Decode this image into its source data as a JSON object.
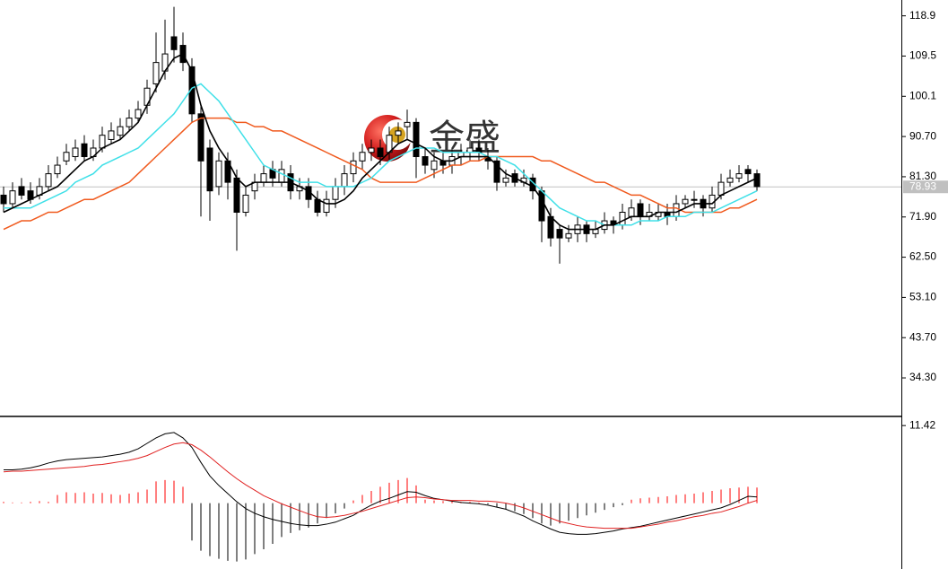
{
  "chart_data": [
    {
      "type": "candlestick",
      "watermark": "金盛",
      "up_color": "#ffffff",
      "down_color": "#000000",
      "open": [
        77,
        75,
        79,
        78,
        77,
        79,
        82,
        85,
        86,
        89,
        86,
        88,
        90,
        91,
        93,
        95,
        98,
        103,
        106,
        114,
        112,
        107,
        96,
        88,
        79,
        85,
        81,
        73,
        78,
        80,
        83,
        80,
        82,
        78,
        79,
        76,
        73,
        76,
        79,
        82,
        85,
        87,
        88,
        87,
        91,
        93,
        94,
        86,
        83,
        85,
        84,
        86,
        87,
        88,
        86,
        85,
        80,
        82,
        80,
        81,
        78,
        72,
        69,
        67,
        68,
        70,
        68,
        69,
        71,
        70,
        72,
        75,
        72,
        72,
        73,
        72,
        75,
        76,
        76,
        74,
        77,
        80,
        81,
        83,
        82
      ],
      "high": [
        79,
        80,
        81,
        80,
        81,
        84,
        86,
        89,
        90,
        91,
        90,
        93,
        94,
        95,
        97,
        99,
        104,
        115,
        118,
        121,
        115,
        109,
        98,
        90,
        87,
        87,
        83,
        79,
        82,
        84,
        85,
        85,
        84,
        81,
        81,
        78,
        78,
        81,
        84,
        87,
        89,
        90,
        90,
        93,
        94,
        97,
        95,
        88,
        87,
        87,
        88,
        89,
        90,
        90,
        88,
        86,
        83,
        83,
        83,
        82,
        79,
        74,
        70,
        70,
        72,
        71,
        71,
        73,
        72,
        75,
        76,
        76,
        75,
        75,
        75,
        77,
        77,
        78,
        77,
        79,
        82,
        83,
        84,
        84,
        83
      ],
      "low": [
        73,
        74,
        76,
        75,
        76,
        78,
        81,
        84,
        85,
        85,
        85,
        87,
        89,
        90,
        92,
        94,
        96,
        101,
        104,
        108,
        106,
        94,
        72,
        71,
        77,
        76,
        64,
        72,
        76,
        79,
        79,
        79,
        76,
        76,
        74,
        72,
        72,
        74,
        77,
        80,
        83,
        85,
        84,
        85,
        89,
        90,
        81,
        82,
        81,
        82,
        82,
        84,
        85,
        85,
        83,
        78,
        79,
        79,
        79,
        76,
        66,
        65,
        61,
        66,
        66,
        66,
        67,
        68,
        68,
        69,
        71,
        70,
        71,
        71,
        70,
        71,
        74,
        74,
        72,
        73,
        76,
        79,
        80,
        80,
        78
      ],
      "close": [
        75,
        78,
        77,
        76,
        79,
        82,
        84,
        87,
        88,
        86,
        88,
        91,
        92,
        93,
        95,
        97,
        102,
        108,
        110,
        111,
        108,
        96,
        85,
        78,
        85,
        80,
        73,
        77,
        80,
        82,
        81,
        83,
        78,
        79,
        76,
        73,
        76,
        79,
        82,
        85,
        87,
        88,
        86,
        91,
        92,
        94,
        86,
        84,
        85,
        84,
        86,
        87,
        88,
        87,
        85,
        80,
        81,
        80,
        81,
        78,
        71,
        67,
        67,
        68,
        70,
        68,
        69,
        71,
        70,
        73,
        74,
        72,
        73,
        73,
        72,
        75,
        76,
        76,
        74,
        77,
        80,
        81,
        82,
        82,
        79
      ],
      "overlays": [
        {
          "color": "#000000",
          "values": [
            73,
            74,
            75,
            76,
            77,
            78,
            79,
            81,
            83,
            85,
            86,
            88,
            89,
            90,
            92,
            94,
            98,
            102,
            106,
            109,
            110,
            106,
            98,
            92,
            88,
            85,
            81,
            79,
            80,
            80,
            80,
            80,
            80,
            79,
            78,
            76,
            75,
            75,
            76,
            78,
            81,
            83,
            85,
            87,
            89,
            90,
            89,
            88,
            86,
            85,
            85,
            86,
            86,
            86,
            86,
            84,
            82,
            81,
            80,
            79,
            76,
            72,
            70,
            69,
            69,
            69,
            69,
            70,
            70,
            71,
            72,
            72,
            72,
            73,
            73,
            73,
            74,
            75,
            75,
            75,
            77,
            78,
            79,
            80,
            81
          ]
        },
        {
          "color": "#40e0e8",
          "values": [
            74,
            74,
            74,
            74,
            75,
            76,
            77,
            78,
            80,
            81,
            82,
            84,
            85,
            86,
            87,
            88,
            90,
            92,
            94,
            96,
            99,
            102,
            103,
            101,
            99,
            96,
            93,
            90,
            87,
            84,
            83,
            82,
            81,
            80,
            80,
            80,
            79,
            79,
            79,
            79,
            80,
            81,
            83,
            85,
            86,
            87,
            88,
            88,
            88,
            87,
            87,
            87,
            87,
            87,
            86,
            86,
            85,
            84,
            82,
            80,
            78,
            76,
            74,
            73,
            72,
            71,
            71,
            70,
            70,
            70,
            70,
            71,
            71,
            71,
            72,
            72,
            72,
            73,
            73,
            73,
            74,
            75,
            76,
            77,
            78
          ]
        },
        {
          "color": "#f05a1e",
          "values": [
            69,
            70,
            71,
            71,
            72,
            73,
            73,
            74,
            75,
            76,
            76,
            77,
            78,
            79,
            80,
            82,
            84,
            86,
            88,
            90,
            92,
            94,
            95,
            95,
            95,
            95,
            94,
            94,
            93,
            93,
            92,
            92,
            91,
            90,
            89,
            88,
            87,
            86,
            85,
            84,
            83,
            81,
            80,
            80,
            80,
            80,
            80,
            81,
            82,
            83,
            84,
            84,
            85,
            85,
            86,
            86,
            86,
            86,
            86,
            86,
            85,
            85,
            84,
            83,
            82,
            81,
            80,
            80,
            79,
            78,
            77,
            77,
            76,
            75,
            74,
            74,
            73,
            73,
            73,
            73,
            73,
            74,
            74,
            75,
            76
          ]
        }
      ],
      "current_price": 78.93,
      "ylim": [
        25.5,
        122.6
      ],
      "yticks": [
        118.9,
        109.5,
        100.1,
        {
          "value": 90.7,
          "label": "90.70"
        },
        {
          "value": 81.3,
          "label": "81.30"
        },
        {
          "value": 71.9,
          "label": "71.90"
        },
        {
          "value": 62.5,
          "label": "62.50"
        },
        {
          "value": 53.1,
          "label": "53.10"
        },
        {
          "value": 43.7,
          "label": "43.70"
        },
        {
          "value": 34.3,
          "label": "34.30"
        }
      ]
    },
    {
      "type": "macd",
      "up_color": "#ff0000",
      "down_color": "#000000",
      "histogram": [
        0.2,
        0.1,
        0.1,
        0.2,
        0.3,
        0.2,
        1.2,
        1.6,
        1.5,
        1.6,
        1.4,
        1.5,
        1.3,
        1.2,
        1.4,
        1.6,
        2.0,
        3.2,
        3.4,
        3.3,
        2.4,
        -5.5,
        -7.0,
        -7.8,
        -8.2,
        -8.5,
        -8.6,
        -8.3,
        -7.5,
        -6.8,
        -6.0,
        -5.0,
        -4.4,
        -4.0,
        -3.6,
        -3.0,
        -2.2,
        -1.5,
        -0.8,
        0.4,
        1.2,
        1.8,
        2.4,
        3.0,
        3.4,
        3.7,
        2.6,
        0.5,
        0.4,
        0.3,
        0.3,
        0.2,
        0.2,
        0.1,
        -0.2,
        -0.6,
        -0.9,
        -1.2,
        -1.6,
        -2.2,
        -3.0,
        -3.3,
        -3.0,
        -2.6,
        -2.2,
        -1.8,
        -1.4,
        -1.0,
        -0.6,
        -0.3,
        0.5,
        0.7,
        0.8,
        0.9,
        1.0,
        1.2,
        1.3,
        1.4,
        1.6,
        1.8,
        2.0,
        2.2,
        2.3,
        2.4,
        2.3
      ],
      "lines": [
        {
          "color": "#000000",
          "values": [
            4.9,
            4.9,
            5.0,
            5.2,
            5.5,
            5.9,
            6.2,
            6.4,
            6.5,
            6.6,
            6.7,
            6.8,
            7.0,
            7.2,
            7.5,
            8.0,
            8.8,
            9.6,
            10.2,
            10.4,
            9.6,
            8.2,
            6.0,
            4.0,
            2.6,
            1.4,
            0.2,
            -0.8,
            -1.5,
            -2.0,
            -2.4,
            -2.7,
            -3.0,
            -3.2,
            -3.3,
            -3.3,
            -3.1,
            -2.8,
            -2.3,
            -1.8,
            -1.0,
            -0.3,
            0.3,
            0.7,
            1.2,
            1.7,
            1.6,
            1.1,
            0.7,
            0.5,
            0.3,
            0.1,
            0.0,
            -0.1,
            -0.3,
            -0.6,
            -0.9,
            -1.4,
            -1.9,
            -2.6,
            -3.2,
            -3.8,
            -4.3,
            -4.5,
            -4.6,
            -4.6,
            -4.5,
            -4.3,
            -4.1,
            -3.8,
            -3.6,
            -3.4,
            -3.1,
            -2.8,
            -2.5,
            -2.2,
            -1.9,
            -1.6,
            -1.3,
            -1.0,
            -0.7,
            -0.2,
            0.4,
            1.0,
            0.9
          ]
        },
        {
          "color": "#e02020",
          "values": [
            4.6,
            4.7,
            4.7,
            4.8,
            4.9,
            5.0,
            5.1,
            5.2,
            5.3,
            5.4,
            5.6,
            5.7,
            5.9,
            6.1,
            6.3,
            6.6,
            7.0,
            7.6,
            8.2,
            8.7,
            8.9,
            8.6,
            7.8,
            6.8,
            5.7,
            4.6,
            3.6,
            2.7,
            1.9,
            1.1,
            0.5,
            -0.1,
            -0.6,
            -1.1,
            -1.6,
            -2.0,
            -2.1,
            -2.0,
            -1.8,
            -1.5,
            -1.2,
            -0.8,
            -0.4,
            0.0,
            0.4,
            0.8,
            0.9,
            0.8,
            0.6,
            0.5,
            0.4,
            0.4,
            0.4,
            0.3,
            0.3,
            0.2,
            0.0,
            -0.3,
            -0.7,
            -1.2,
            -1.7,
            -2.2,
            -2.7,
            -3.0,
            -3.3,
            -3.5,
            -3.6,
            -3.7,
            -3.7,
            -3.7,
            -3.7,
            -3.5,
            -3.3,
            -3.1,
            -2.8,
            -2.6,
            -2.3,
            -2.0,
            -1.8,
            -1.5,
            -1.3,
            -0.9,
            -0.5,
            0.0,
            0.4
          ]
        }
      ],
      "ylim": [
        -9.7,
        12.5
      ],
      "yticks": [
        11.42
      ]
    }
  ]
}
